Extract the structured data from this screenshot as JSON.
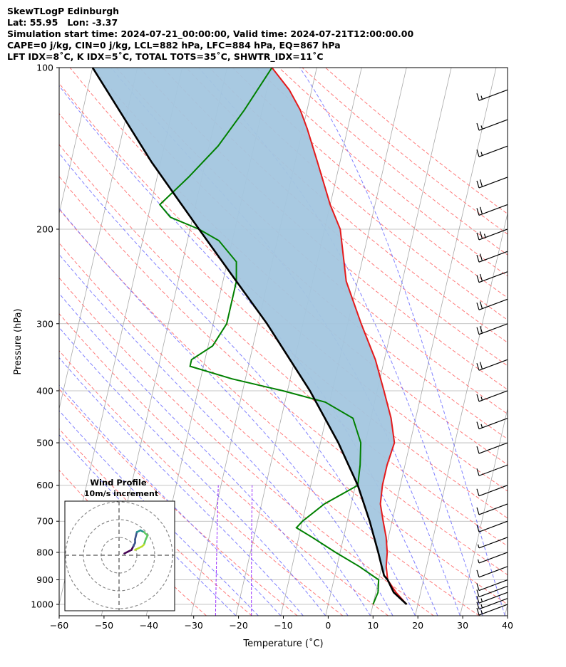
{
  "titles": {
    "line1": "SkewTLogP Edinburgh",
    "line2": "Lat: 55.95   Lon: -3.37",
    "line3": "Simulation start time: 2024-07-21_00:00:00, Valid time: 2024-07-21T12:00:00.00",
    "line4": "CAPE=0 j/kg, CIN=0 j/kg, LCL=882 hPa, LFC=884 hPa, EQ=867 hPa",
    "line5": "LFT IDX=8˚C, K IDX=5˚C, TOTAL TOTS=35˚C, SHWTR_IDX=11˚C"
  },
  "chart_data": [
    {
      "type": "line",
      "name": "skew-t-log-p",
      "xlabel": "Temperature (˚C)",
      "ylabel": "Pressure (hPa)",
      "xlim": [
        -60,
        40
      ],
      "ylim": [
        1050,
        100
      ],
      "yscale": "log",
      "x_ticks": [
        "−60",
        "−50",
        "−40",
        "−30",
        "−20",
        "−10",
        "0",
        "10",
        "20",
        "30",
        "40"
      ],
      "y_ticks": [
        "1000",
        "900",
        "800",
        "700",
        "600",
        "500",
        "400",
        "300",
        "200",
        "100"
      ],
      "grid": true,
      "colors": {
        "temperature": "#e41a1c",
        "dewpoint": "#008000",
        "parcel": "#000000",
        "cape_fill": "#a3c6df",
        "isotherm": "#a8a8a8",
        "dry_adiabat": "#ff6b6b",
        "moist_adiabat": "#6b6bff",
        "mixing_ratio": "#9b30ff"
      },
      "series": [
        {
          "key": "temperature",
          "points": [
            [
              1000,
              17.5
            ],
            [
              950,
              14.5
            ],
            [
              900,
              12
            ],
            [
              850,
              11
            ],
            [
              800,
              10.5
            ],
            [
              750,
              9.5
            ],
            [
              700,
              8
            ],
            [
              650,
              6.5
            ],
            [
              600,
              6
            ],
            [
              550,
              6
            ],
            [
              500,
              6.5
            ],
            [
              450,
              4.5
            ],
            [
              400,
              1.5
            ],
            [
              350,
              -2
            ],
            [
              300,
              -7
            ],
            [
              250,
              -12.5
            ],
            [
              200,
              -16.5
            ],
            [
              180,
              -20
            ],
            [
              150,
              -25
            ],
            [
              130,
              -29
            ],
            [
              120,
              -31.5
            ],
            [
              110,
              -35
            ],
            [
              100,
              -40
            ]
          ]
        },
        {
          "key": "dewpoint",
          "points": [
            [
              1000,
              10
            ],
            [
              950,
              10.5
            ],
            [
              900,
              10
            ],
            [
              850,
              5
            ],
            [
              800,
              -1
            ],
            [
              750,
              -7
            ],
            [
              720,
              -11
            ],
            [
              700,
              -10
            ],
            [
              650,
              -6
            ],
            [
              600,
              0.5
            ],
            [
              550,
              0
            ],
            [
              500,
              -1
            ],
            [
              450,
              -4
            ],
            [
              420,
              -11
            ],
            [
              400,
              -21
            ],
            [
              380,
              -33
            ],
            [
              360,
              -43
            ],
            [
              350,
              -43
            ],
            [
              330,
              -39
            ],
            [
              300,
              -37
            ],
            [
              250,
              -37
            ],
            [
              230,
              -38
            ],
            [
              210,
              -43
            ],
            [
              200,
              -48
            ],
            [
              190,
              -55
            ],
            [
              180,
              -58
            ],
            [
              160,
              -53
            ],
            [
              140,
              -48
            ],
            [
              120,
              -44
            ],
            [
              100,
              -40
            ]
          ]
        },
        {
          "key": "parcel",
          "points": [
            [
              1000,
              17.5
            ],
            [
              950,
              14
            ],
            [
              900,
              12
            ],
            [
              884,
              11
            ],
            [
              850,
              10
            ],
            [
              800,
              8.5
            ],
            [
              700,
              5
            ],
            [
              600,
              0.5
            ],
            [
              500,
              -6
            ],
            [
              400,
              -15
            ],
            [
              300,
              -28
            ],
            [
              250,
              -37
            ],
            [
              200,
              -48
            ],
            [
              150,
              -62
            ],
            [
              100,
              -80
            ]
          ]
        }
      ]
    },
    {
      "type": "line",
      "name": "hodograph",
      "title": "Wind Profile",
      "subtitle": "10m/s increment",
      "rings_ms": [
        10,
        20,
        30
      ],
      "points_uv": [
        [
          3,
          1
        ],
        [
          5,
          2
        ],
        [
          7,
          3
        ],
        [
          8,
          5
        ],
        [
          9,
          7
        ],
        [
          9,
          9
        ],
        [
          10,
          13
        ],
        [
          12,
          14
        ],
        [
          14,
          13
        ],
        [
          16,
          11
        ],
        [
          15,
          9
        ],
        [
          14,
          6
        ],
        [
          13,
          5
        ],
        [
          11,
          4
        ],
        [
          9,
          3
        ]
      ],
      "colormap": [
        "#440154",
        "#3b528b",
        "#21918c",
        "#5ec962",
        "#b8de29"
      ]
    }
  ],
  "wind_barbs": [
    {
      "p": 1000,
      "full": 1,
      "half": 1
    },
    {
      "p": 975,
      "full": 1,
      "half": 1
    },
    {
      "p": 950,
      "full": 1,
      "half": 1
    },
    {
      "p": 925,
      "full": 1,
      "half": 0
    },
    {
      "p": 900,
      "full": 1,
      "half": 0
    },
    {
      "p": 850,
      "full": 1,
      "half": 0
    },
    {
      "p": 800,
      "full": 0,
      "half": 1
    },
    {
      "p": 750,
      "full": 0,
      "half": 1
    },
    {
      "p": 700,
      "full": 1,
      "half": 0
    },
    {
      "p": 650,
      "full": 1,
      "half": 0
    },
    {
      "p": 600,
      "full": 1,
      "half": 0
    },
    {
      "p": 550,
      "full": 1,
      "half": 0
    },
    {
      "p": 500,
      "full": 1,
      "half": 0
    },
    {
      "p": 450,
      "full": 1,
      "half": 1
    },
    {
      "p": 400,
      "full": 1,
      "half": 1
    },
    {
      "p": 350,
      "full": 2,
      "half": 0
    },
    {
      "p": 300,
      "full": 2,
      "half": 0
    },
    {
      "p": 270,
      "full": 2,
      "half": 0
    },
    {
      "p": 240,
      "full": 2,
      "half": 0
    },
    {
      "p": 220,
      "full": 2,
      "half": 0
    },
    {
      "p": 200,
      "full": 2,
      "half": 1
    },
    {
      "p": 180,
      "full": 2,
      "half": 0
    },
    {
      "p": 160,
      "full": 2,
      "half": 0
    },
    {
      "p": 140,
      "full": 1,
      "half": 1
    },
    {
      "p": 125,
      "full": 1,
      "half": 1
    },
    {
      "p": 110,
      "full": 1,
      "half": 1
    }
  ]
}
